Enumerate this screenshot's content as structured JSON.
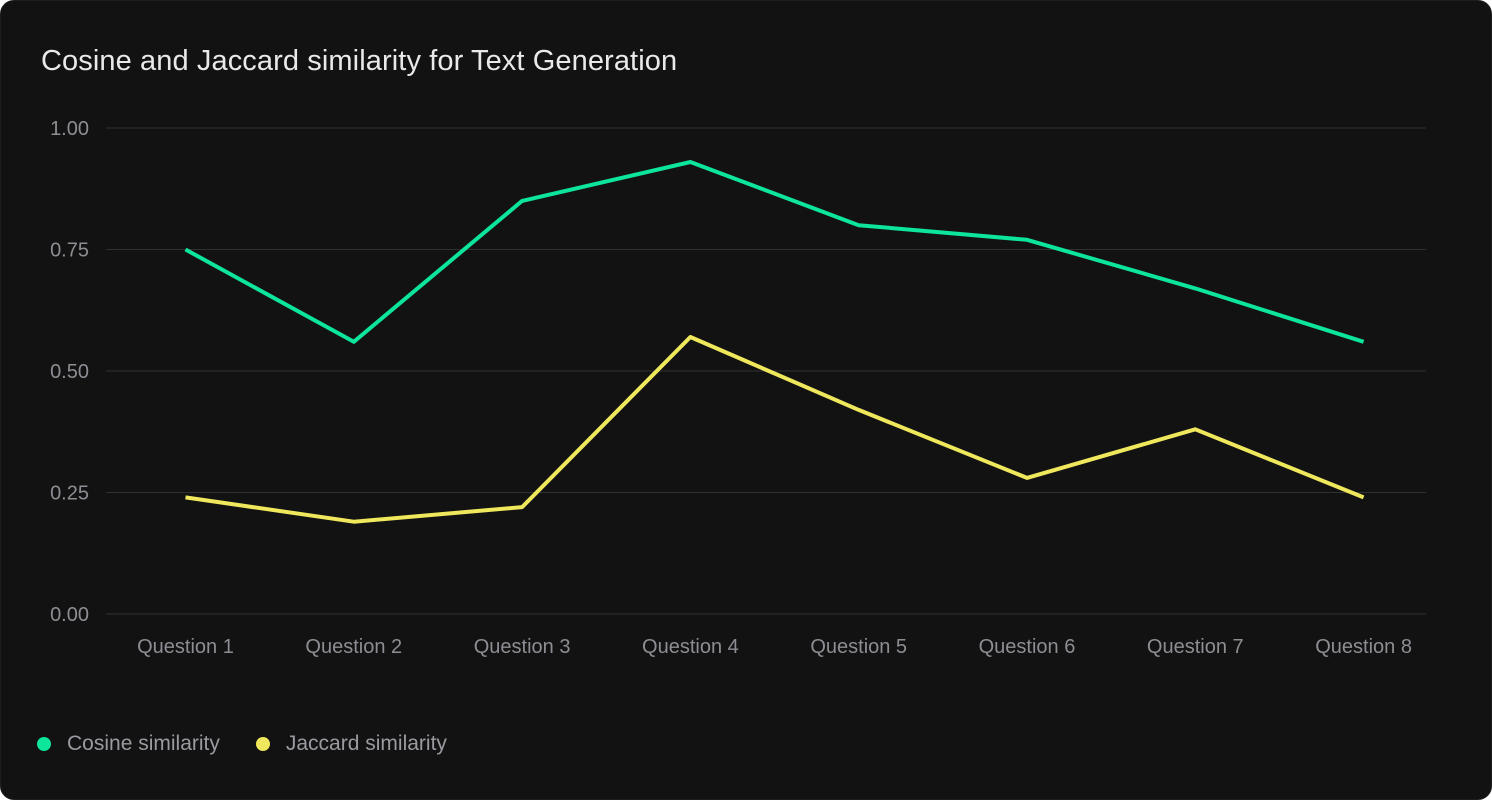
{
  "card": {
    "background_color": "#121213",
    "grid_color": "#303031",
    "tick_label_color": "#8d8d93",
    "title_color": "#e9e9ea",
    "legend_label_color": "#9a9aa0"
  },
  "chart_data": {
    "type": "line",
    "title": "Cosine and Jaccard similarity for Text Generation",
    "xlabel": "",
    "ylabel": "",
    "categories": [
      "Question 1",
      "Question 2",
      "Question 3",
      "Question 4",
      "Question 5",
      "Question 6",
      "Question 7",
      "Question 8"
    ],
    "series": [
      {
        "name": "Cosine similarity",
        "color": "#0ce59a",
        "values": [
          0.75,
          0.56,
          0.85,
          0.93,
          0.8,
          0.77,
          0.67,
          0.56
        ]
      },
      {
        "name": "Jaccard similarity",
        "color": "#f0e85c",
        "values": [
          0.24,
          0.19,
          0.22,
          0.57,
          0.42,
          0.28,
          0.38,
          0.24
        ]
      }
    ],
    "ylim": [
      0,
      1
    ],
    "yticks": [
      {
        "value": 0.0,
        "label": "0.00"
      },
      {
        "value": 0.25,
        "label": "0.25"
      },
      {
        "value": 0.5,
        "label": "0.50"
      },
      {
        "value": 0.75,
        "label": "0.75"
      },
      {
        "value": 1.0,
        "label": "1.00"
      }
    ],
    "grid": "horizontal",
    "legend_position": "bottom-left"
  }
}
